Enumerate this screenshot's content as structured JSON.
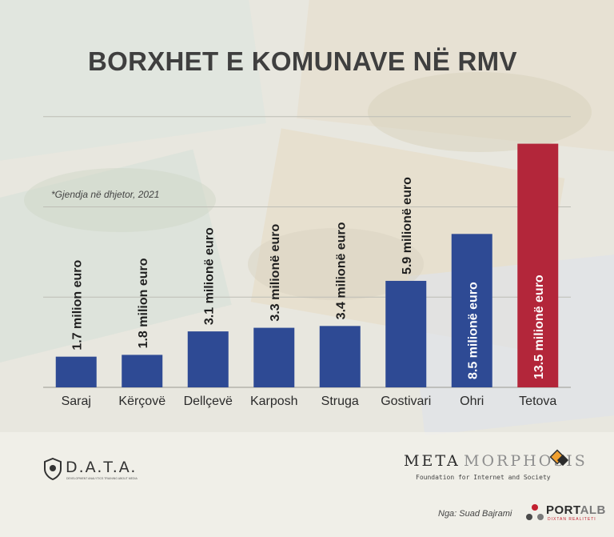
{
  "header": {
    "title": "BORXHET E KOMUNAVE NË RMV",
    "note": "*Gjendja në dhjetor, 2021"
  },
  "colors": {
    "bar_default": "#2e4a94",
    "bar_highlight": "#b3263a",
    "title": "#3f3f3f"
  },
  "chart_data": {
    "type": "bar",
    "title": "BORXHET E KOMUNAVE NË RMV",
    "xlabel": "",
    "ylabel": "",
    "ylim": [
      0,
      15
    ],
    "grid": true,
    "categories": [
      "Saraj",
      "Kërçovë",
      "Dellçevë",
      "Karposh",
      "Struga",
      "Gostivari",
      "Ohri",
      "Tetova"
    ],
    "values": [
      1.7,
      1.8,
      3.1,
      3.3,
      3.4,
      5.9,
      8.5,
      13.5
    ],
    "data_labels": [
      "1.7 milion euro",
      "1.8 milion euro",
      "3.1 milionë euro",
      "3.3 milionë euro",
      "3.4 milionë euro",
      "5.9 milionë euro",
      "8.5 milionë euro",
      "13.5 milionë euro"
    ],
    "highlight": [
      false,
      false,
      false,
      false,
      false,
      false,
      false,
      true
    ],
    "annotation": "*Gjendja në dhjetor, 2021"
  },
  "footer": {
    "data_logo_text": "D.A.T.A.",
    "data_logo_subtitle": "DEVELOPMENT ANALYTICS TRAINING ABOUT MEDIA",
    "meta_part1": "META",
    "meta_part2": "MORPHOSIS",
    "meta_subtitle": "Foundation for Internet and Society",
    "author": "Nga: Suad Bajrami",
    "portalb_main": "PORT",
    "portalb_accent": "ALB",
    "portalb_tagline": "DIXTAN REALITETI"
  }
}
